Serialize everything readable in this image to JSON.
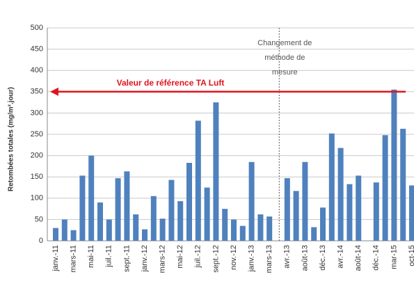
{
  "chart_data": {
    "type": "bar",
    "ylabel": "Retombées totales (mg/m².jour)",
    "categories": [
      "janv.-11",
      null,
      "mars-11",
      null,
      "mai-11",
      null,
      "juil.-11",
      null,
      "sept.-11",
      null,
      "janv.-12",
      null,
      "mars-12",
      null,
      "mai-12",
      null,
      "juil.-12",
      null,
      "sept.-12",
      null,
      "nov.-12",
      null,
      "janv.-13",
      null,
      "mars-13",
      null,
      "avr.-13",
      null,
      "août-13",
      null,
      "déc.-13",
      null,
      "avr.-14",
      null,
      "août-14",
      null,
      "déc.-14",
      null,
      "mar-15",
      null,
      "oct-15"
    ],
    "values": [
      30,
      50,
      25,
      153,
      200,
      90,
      50,
      147,
      163,
      62,
      27,
      105,
      52,
      143,
      93,
      183,
      282,
      125,
      325,
      75,
      50,
      35,
      185,
      62,
      57,
      null,
      147,
      117,
      185,
      32,
      78,
      252,
      218,
      133,
      153,
      null,
      137,
      248,
      355,
      263,
      130
    ],
    "color": "#4f81bd",
    "ylim": [
      0,
      500
    ],
    "yticks": [
      0,
      50,
      100,
      150,
      200,
      250,
      300,
      350,
      400,
      450,
      500
    ],
    "grid": true,
    "reference": {
      "value": 350,
      "label": "Valeur de référence TA Luft",
      "color": "#e0141e"
    },
    "annotation": [
      "Changement de",
      "méthode de",
      "mesure"
    ]
  }
}
